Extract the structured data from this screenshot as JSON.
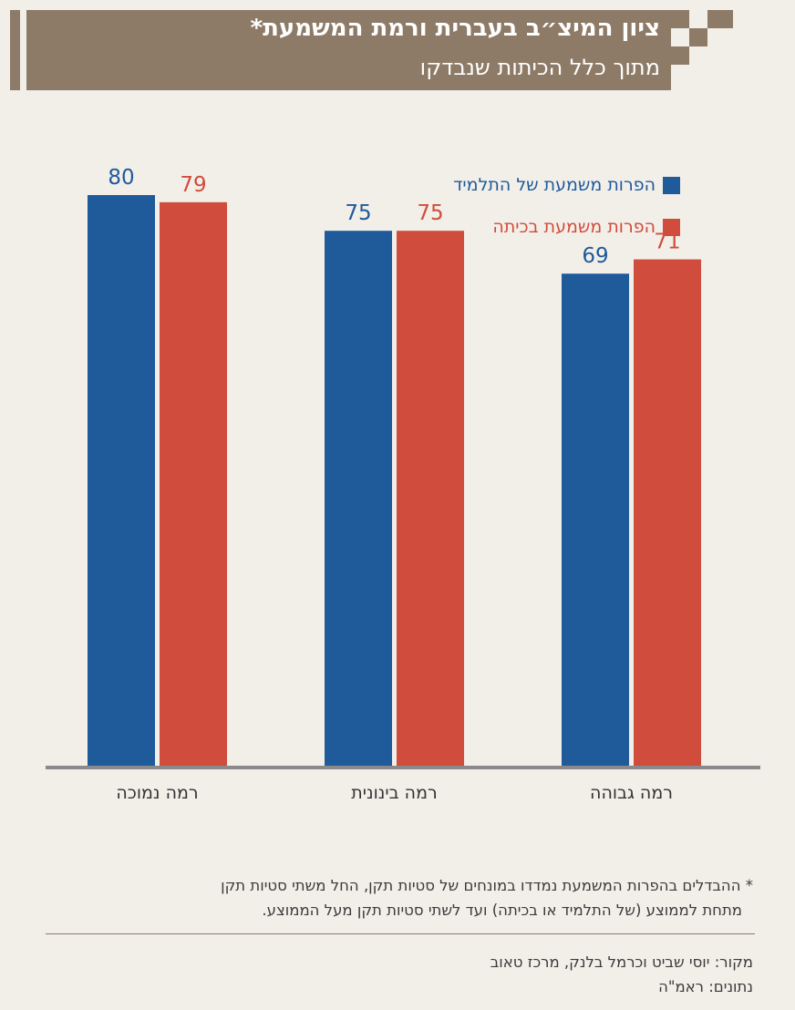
{
  "header": {
    "title": "ציון המיצ״ב בעברית ורמת המשמעת*",
    "subtitle": "מתוך כלל הכיתות שנבדקו"
  },
  "colors": {
    "brand": "#8d7b67",
    "series_student": "#1f5a9a",
    "series_class": "#d04c3c",
    "background": "#f2efe9"
  },
  "chart_data": {
    "type": "bar",
    "title": "ציון המיצ״ב בעברית ורמת המשמעת*",
    "subtitle": "מתוך כלל הכיתות שנבדקו",
    "categories": [
      "רמה נמוכה",
      "רמה בינונית",
      "רמה גבוהה"
    ],
    "series": [
      {
        "name": "הפרות משמעת של התלמיד",
        "values": [
          80,
          75,
          69
        ],
        "color": "#1f5a9a"
      },
      {
        "name": "הפרות משמעת בכיתה",
        "values": [
          79,
          75,
          71
        ],
        "color": "#d04c3c"
      }
    ],
    "ylim": [
      0,
      80
    ],
    "grid": false,
    "legend": "top-right"
  },
  "footnote": {
    "line1": "* ההבדלים בהפרות המשמעת נמדדו במונחים של סטיות תקן, החל משתי סטיות תקן",
    "line2": "מתחת לממוצע (של התלמיד או בכיתה) ועד לשתי סטיות תקן מעל הממוצע."
  },
  "source": {
    "line1": "מקור: יוסי שביט וכרמל בלנק, מרכז טאוב",
    "line2": "נתונים: ראמ\"ה"
  }
}
